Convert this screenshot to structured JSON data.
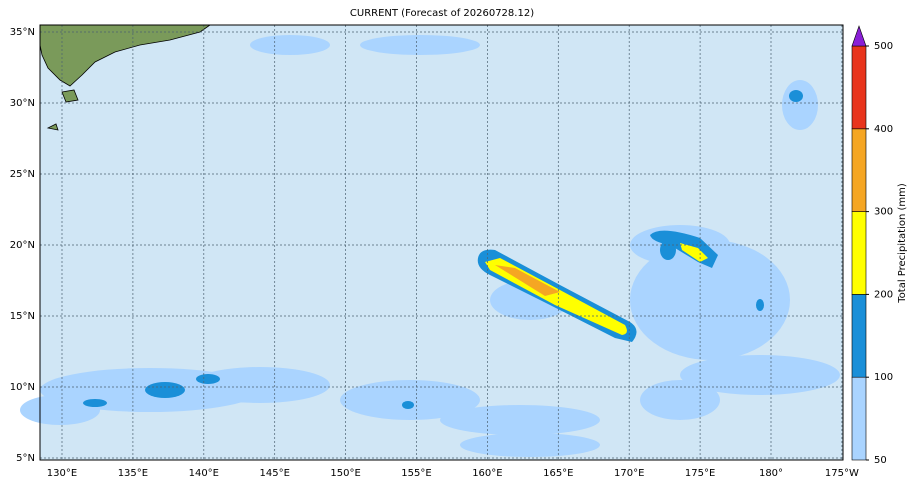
{
  "map": {
    "title": "CURRENT (Forecast of 20260728.12)",
    "lon_labels": [
      "130°E",
      "135°E",
      "140°E",
      "145°E",
      "150°E",
      "155°E",
      "160°E",
      "165°E",
      "170°E",
      "175°E",
      "180°",
      "175°W"
    ],
    "lat_labels": [
      "35°N",
      "30°N",
      "25°N",
      "20°N",
      "15°N",
      "10°N",
      "5°N"
    ],
    "colorbar": {
      "label": "Total Precipitation (mm)",
      "ticks": [
        50,
        100,
        200,
        300,
        400,
        500
      ],
      "colors": [
        "#aad4ff",
        "#1a8fd8",
        "#ffff00",
        "#f5a623",
        "#e8341c"
      ],
      "extend_color": "#8a1fd6"
    }
  }
}
